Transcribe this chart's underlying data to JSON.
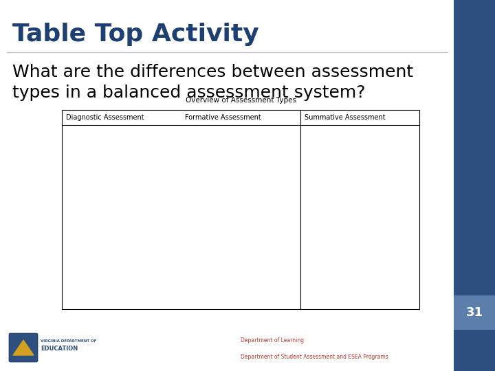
{
  "title": "Table Top Activity",
  "subtitle_line1": "What are the differences between assessment",
  "subtitle_line2": "types in a balanced assessment system?",
  "table_title": "Overview of Assessment Types",
  "col_headers": [
    "Diagnostic Assessment",
    "Formative Assessment",
    "Summative Assessment"
  ],
  "title_color": "#1e3f72",
  "sidebar_color_dark": "#2d5080",
  "sidebar_color_light": "#5b7faa",
  "page_number": "31",
  "footer_line1": "Department of Learning",
  "footer_line2": "Department of Student Assessment and ESEA Programs",
  "footer_color": "#c0392b",
  "slide_bg": "#e9eaed",
  "white": "#ffffff"
}
